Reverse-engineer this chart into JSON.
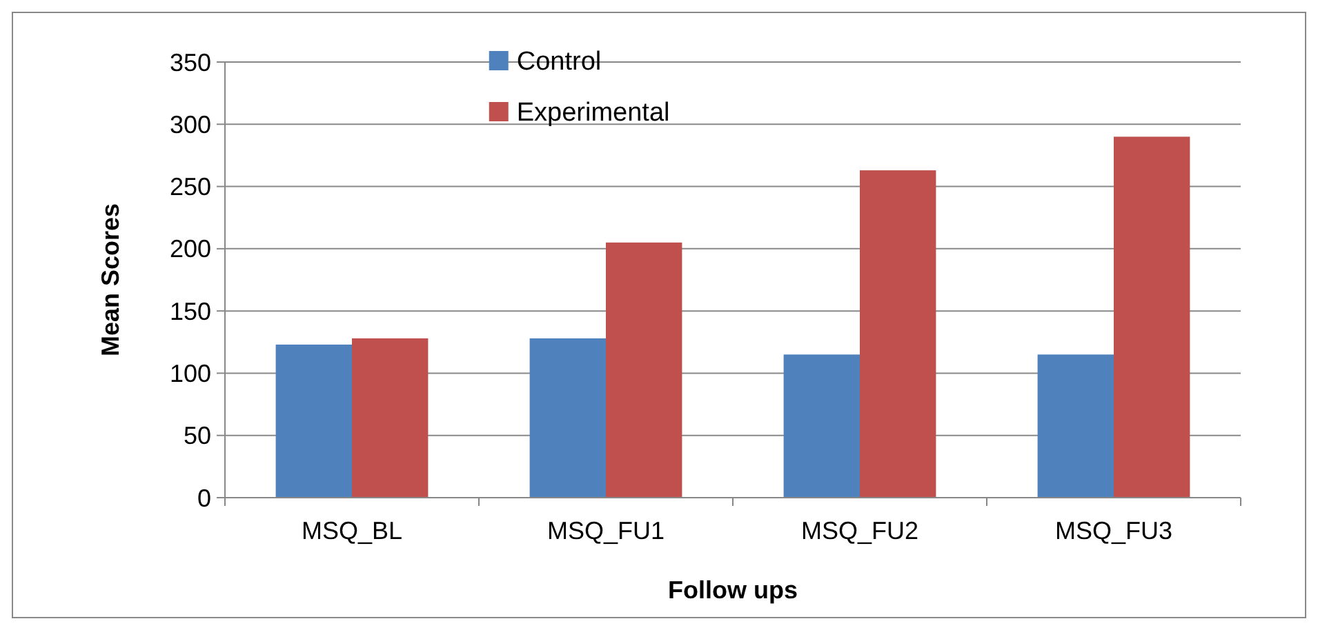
{
  "chart_data": {
    "type": "bar",
    "xlabel": "Follow ups",
    "ylabel": "Mean Scores",
    "categories": [
      "MSQ_BL",
      "MSQ_FU1",
      "MSQ_FU2",
      "MSQ_FU3"
    ],
    "series": [
      {
        "name": "Control",
        "color": "#4f81bd",
        "values": [
          123,
          128,
          115,
          115
        ]
      },
      {
        "name": "Experimental",
        "color": "#c0504d",
        "values": [
          128,
          205,
          263,
          290
        ]
      }
    ],
    "ylim": [
      0,
      350
    ],
    "yticks": [
      0,
      50,
      100,
      150,
      200,
      250,
      300,
      350
    ],
    "grid": "y",
    "legend": "top"
  }
}
